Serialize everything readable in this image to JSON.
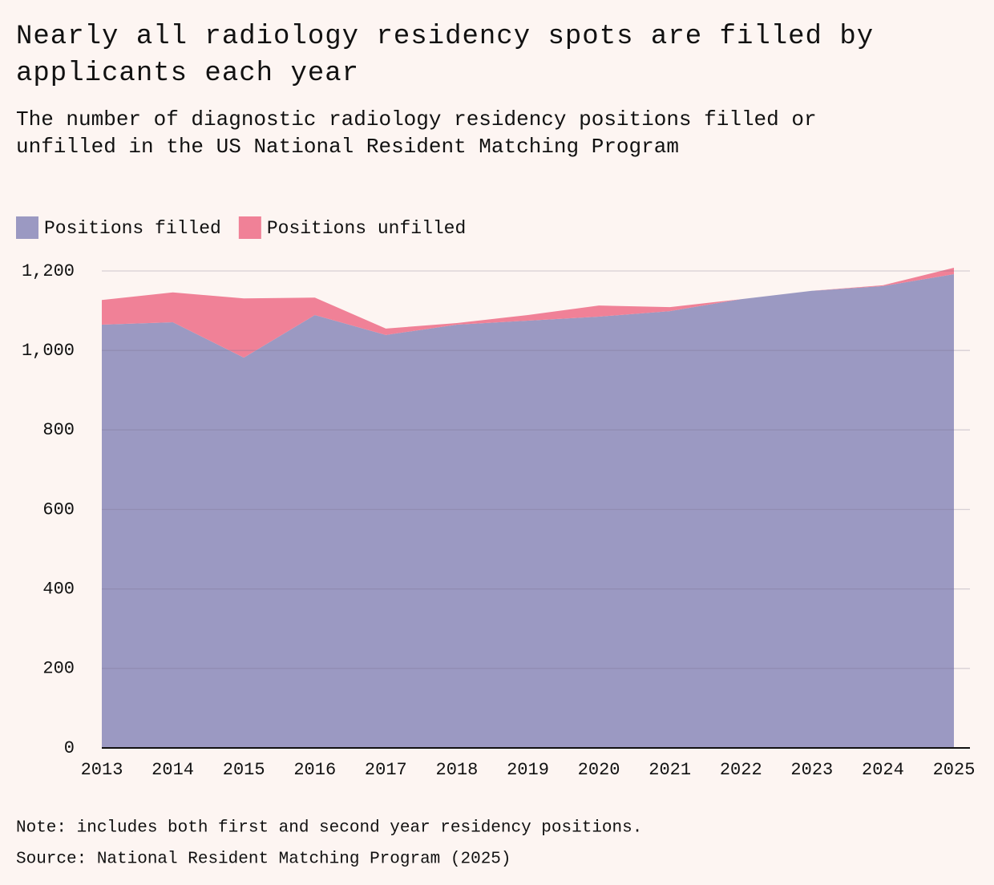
{
  "chart_data": {
    "type": "stacked_area",
    "title_lines": [
      "Nearly all radiology residency spots are filled by",
      "applicants each year"
    ],
    "subtitle_lines": [
      "The number of diagnostic radiology residency positions filled or",
      "unfilled in the US National Resident Matching Program"
    ],
    "x": [
      2013,
      2014,
      2015,
      2016,
      2017,
      2018,
      2019,
      2020,
      2021,
      2022,
      2023,
      2024,
      2025
    ],
    "xlim": [
      2013,
      2025
    ],
    "series": [
      {
        "name": "Positions filled",
        "color": "#9b99c2",
        "values": [
          1065,
          1071,
          982,
          1089,
          1039,
          1065,
          1075,
          1085,
          1099,
          1129,
          1150,
          1162,
          1192
        ]
      },
      {
        "name": "Positions unfilled",
        "color": "#f08197",
        "values": [
          62,
          75,
          149,
          44,
          16,
          4,
          14,
          28,
          10,
          0,
          0,
          2,
          16
        ]
      }
    ],
    "ylim": [
      0,
      1200
    ],
    "yticks": [
      0,
      200,
      400,
      600,
      800,
      {
        "value": 1000,
        "label": "1,000"
      },
      {
        "value": 1200,
        "label": "1,200"
      }
    ],
    "grid": true,
    "note": "Note: includes both first and second year residency positions.",
    "source": "Source: National Resident Matching Program (2025)"
  }
}
